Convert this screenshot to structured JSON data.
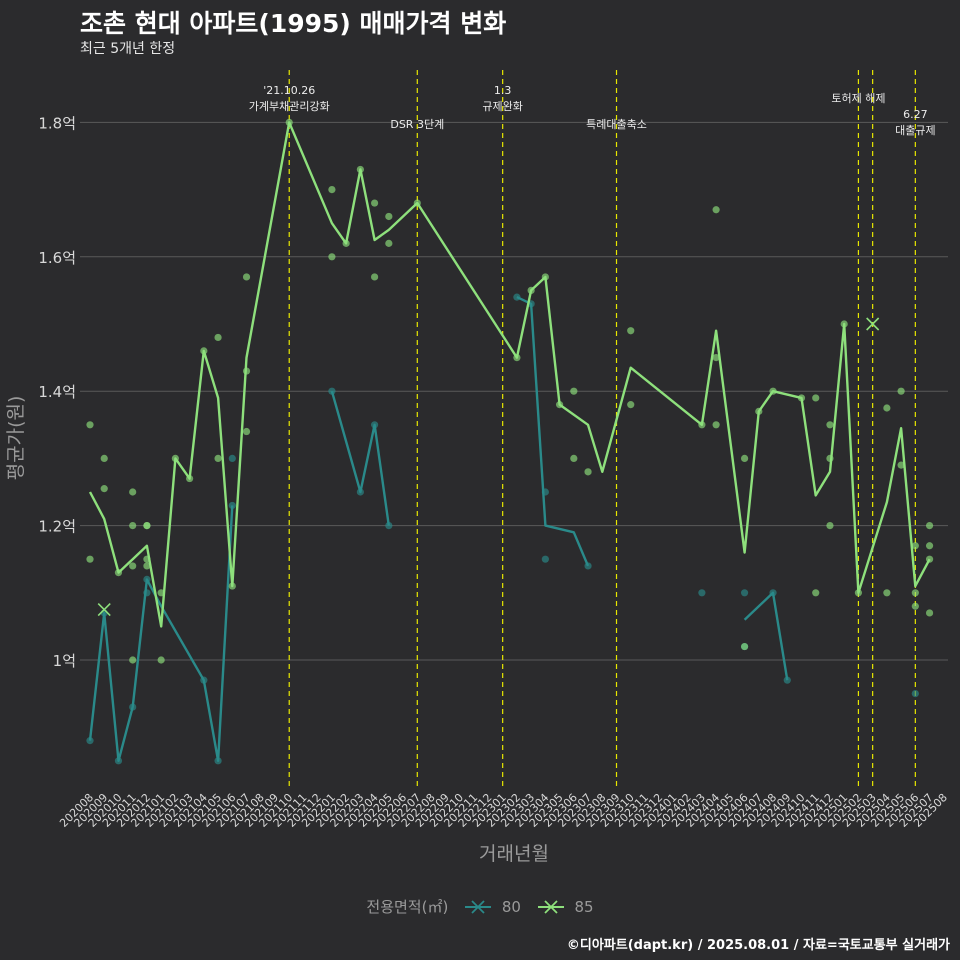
{
  "header": {
    "title": "조촌 현대 아파트(1995) 매매가격 변화",
    "subtitle": "최근 5개년 한정"
  },
  "footer": {
    "caption": "©디아파트(dapt.kr) / 2025.08.01 / 자료=국토교통부 실거래가"
  },
  "legend": {
    "title": "전용면적(㎡)",
    "items": [
      "80",
      "85"
    ]
  },
  "colors": {
    "s80": "#2a8a8a",
    "s85": "#8ee07c",
    "vline": "#e8e800",
    "grid": "#5a5a5a"
  },
  "chart_data": {
    "type": "line",
    "xlabel": "거래년월",
    "ylabel": "평균가(원)",
    "ylim": [
      0.8,
      1.9
    ],
    "yticks": [
      {
        "v": 1.0,
        "label": "1억"
      },
      {
        "v": 1.2,
        "label": "1.2억"
      },
      {
        "v": 1.4,
        "label": "1.4억"
      },
      {
        "v": 1.6,
        "label": "1.6억"
      },
      {
        "v": 1.8,
        "label": "1.8억"
      }
    ],
    "x_months": [
      "202008",
      "202009",
      "202010",
      "202011",
      "202012",
      "202101",
      "202102",
      "202103",
      "202104",
      "202105",
      "202106",
      "202107",
      "202108",
      "202109",
      "202110",
      "202111",
      "202112",
      "202201",
      "202202",
      "202203",
      "202204",
      "202205",
      "202206",
      "202207",
      "202208",
      "202209",
      "202210",
      "202211",
      "202212",
      "202301",
      "202302",
      "202303",
      "202304",
      "202305",
      "202306",
      "202307",
      "202308",
      "202309",
      "202310",
      "202311",
      "202312",
      "202401",
      "202402",
      "202403",
      "202404",
      "202405",
      "202406",
      "202407",
      "202408",
      "202409",
      "202410",
      "202411",
      "202412",
      "202501",
      "202502",
      "202503",
      "202504",
      "202505",
      "202506",
      "202507",
      "202508"
    ],
    "events": [
      {
        "x": 14.0,
        "label": "'21.10.26\n가계부채관리강화",
        "row": 0
      },
      {
        "x": 23.0,
        "label": "DSR 3단계",
        "row": 2
      },
      {
        "x": 29.0,
        "label": "1.3\n규제완화",
        "row": 0
      },
      {
        "x": 37.0,
        "label": "특례대출축소",
        "row": 2
      },
      {
        "x": 54.0,
        "label": "토허제 해제",
        "row": 1
      },
      {
        "x": 55.0,
        "label": "",
        "row": 1
      },
      {
        "x": 58.0,
        "label": "6.27\n대출규제",
        "row": 3
      }
    ],
    "series": [
      {
        "name": "80",
        "lines": [
          [
            [
              0,
              0.88
            ],
            [
              1,
              1.07
            ],
            [
              2,
              0.85
            ],
            [
              3,
              0.93
            ],
            [
              4,
              1.12
            ],
            [
              5,
              1.08
            ],
            [
              8,
              0.97
            ],
            [
              9,
              0.85
            ],
            [
              10,
              1.23
            ]
          ],
          [
            [
              17,
              1.4
            ],
            [
              19,
              1.25
            ],
            [
              20,
              1.35
            ],
            [
              21,
              1.2
            ]
          ],
          [
            [
              30,
              1.54
            ],
            [
              31,
              1.53
            ],
            [
              32,
              1.2
            ],
            [
              34,
              1.19
            ],
            [
              35,
              1.14
            ]
          ],
          [
            [
              46,
              1.06
            ],
            [
              48,
              1.1
            ],
            [
              49,
              0.97
            ]
          ]
        ],
        "points": [
          [
            0,
            0.88
          ],
          [
            1,
            1.07
          ],
          [
            2,
            0.85
          ],
          [
            3,
            0.93
          ],
          [
            4,
            1.1
          ],
          [
            4,
            1.12
          ],
          [
            8,
            0.97
          ],
          [
            9,
            0.85
          ],
          [
            10,
            1.3
          ],
          [
            10,
            1.23
          ],
          [
            17,
            1.4
          ],
          [
            19,
            1.25
          ],
          [
            20,
            1.35
          ],
          [
            21,
            1.2
          ],
          [
            30,
            1.54
          ],
          [
            31,
            1.53
          ],
          [
            32,
            1.25
          ],
          [
            32,
            1.15
          ],
          [
            35,
            1.14
          ],
          [
            43,
            1.1
          ],
          [
            46,
            1.02
          ],
          [
            46,
            1.1
          ],
          [
            48,
            1.1
          ],
          [
            49,
            0.97
          ],
          [
            58,
            0.95
          ]
        ],
        "crosses": []
      },
      {
        "name": "85",
        "lines": [
          [
            [
              0,
              1.25
            ],
            [
              1,
              1.21
            ],
            [
              2,
              1.13
            ],
            [
              3,
              1.15
            ],
            [
              4,
              1.17
            ],
            [
              5,
              1.05
            ],
            [
              6,
              1.3
            ],
            [
              7,
              1.27
            ],
            [
              8,
              1.46
            ],
            [
              9,
              1.39
            ],
            [
              10,
              1.11
            ],
            [
              11,
              1.45
            ],
            [
              14,
              1.8
            ],
            [
              17,
              1.65
            ],
            [
              18,
              1.62
            ],
            [
              19,
              1.73
            ],
            [
              20,
              1.625
            ],
            [
              21,
              1.64
            ],
            [
              23,
              1.68
            ],
            [
              30,
              1.45
            ],
            [
              31,
              1.55
            ],
            [
              32,
              1.57
            ],
            [
              33,
              1.38
            ],
            [
              35,
              1.35
            ],
            [
              36,
              1.28
            ],
            [
              38,
              1.435
            ],
            [
              43,
              1.35
            ],
            [
              44,
              1.49
            ],
            [
              46,
              1.16
            ],
            [
              47,
              1.37
            ],
            [
              48,
              1.4
            ],
            [
              50,
              1.39
            ],
            [
              51,
              1.245
            ],
            [
              52,
              1.28
            ],
            [
              53,
              1.5
            ],
            [
              54,
              1.1
            ],
            [
              56,
              1.235
            ],
            [
              57,
              1.345
            ],
            [
              58,
              1.11
            ],
            [
              59,
              1.15
            ]
          ]
        ],
        "points": [
          [
            0,
            1.35
          ],
          [
            0,
            1.15
          ],
          [
            1,
            1.3
          ],
          [
            1,
            1.255
          ],
          [
            2,
            1.13
          ],
          [
            3,
            1.25
          ],
          [
            3,
            1.2
          ],
          [
            3,
            1.14
          ],
          [
            3,
            1.0
          ],
          [
            4,
            1.2
          ],
          [
            4,
            1.2
          ],
          [
            4,
            1.15
          ],
          [
            4,
            1.14
          ],
          [
            5,
            1.1
          ],
          [
            5,
            1.0
          ],
          [
            6,
            1.3
          ],
          [
            7,
            1.27
          ],
          [
            8,
            1.46
          ],
          [
            9,
            1.48
          ],
          [
            9,
            1.3
          ],
          [
            10,
            1.11
          ],
          [
            11,
            1.57
          ],
          [
            11,
            1.43
          ],
          [
            11,
            1.34
          ],
          [
            14,
            1.8
          ],
          [
            17,
            1.7
          ],
          [
            17,
            1.6
          ],
          [
            18,
            1.62
          ],
          [
            19,
            1.73
          ],
          [
            20,
            1.68
          ],
          [
            20,
            1.57
          ],
          [
            21,
            1.66
          ],
          [
            21,
            1.62
          ],
          [
            23,
            1.68
          ],
          [
            30,
            1.45
          ],
          [
            31,
            1.55
          ],
          [
            32,
            1.57
          ],
          [
            33,
            1.38
          ],
          [
            34,
            1.4
          ],
          [
            34,
            1.3
          ],
          [
            35,
            1.28
          ],
          [
            38,
            1.49
          ],
          [
            38,
            1.38
          ],
          [
            43,
            1.35
          ],
          [
            44,
            1.67
          ],
          [
            44,
            1.45
          ],
          [
            44,
            1.35
          ],
          [
            46,
            1.3
          ],
          [
            46,
            1.02
          ],
          [
            47,
            1.37
          ],
          [
            48,
            1.4
          ],
          [
            50,
            1.39
          ],
          [
            51,
            1.39
          ],
          [
            51,
            1.1
          ],
          [
            52,
            1.35
          ],
          [
            52,
            1.3
          ],
          [
            52,
            1.2
          ],
          [
            53,
            1.5
          ],
          [
            54,
            1.1
          ],
          [
            56,
            1.375
          ],
          [
            56,
            1.1
          ],
          [
            57,
            1.4
          ],
          [
            57,
            1.29
          ],
          [
            58,
            1.17
          ],
          [
            58,
            1.1
          ],
          [
            58,
            1.08
          ],
          [
            59,
            1.2
          ],
          [
            59,
            1.17
          ],
          [
            59,
            1.15
          ],
          [
            59,
            1.07
          ]
        ],
        "crosses": [
          [
            1,
            1.075
          ],
          [
            55,
            1.5
          ]
        ]
      }
    ]
  }
}
